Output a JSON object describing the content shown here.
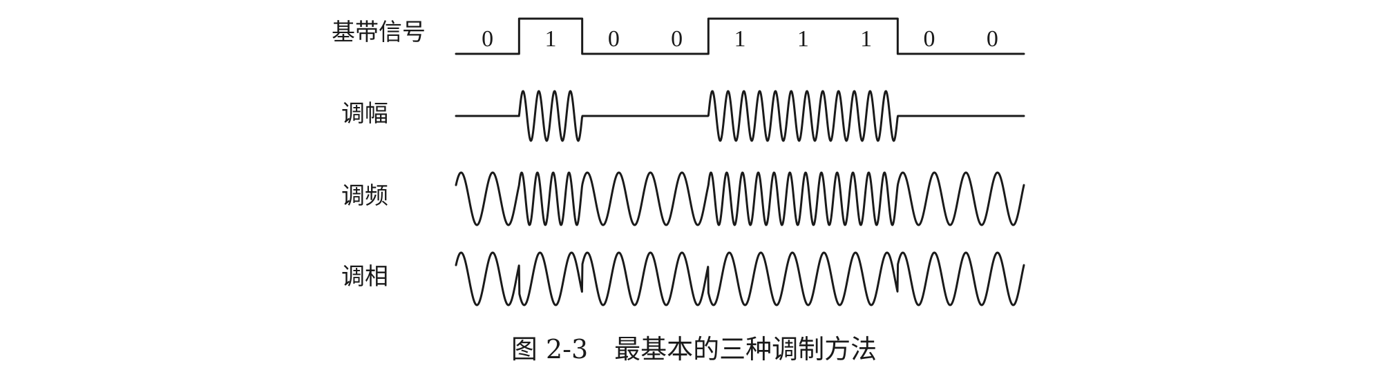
{
  "labels": {
    "baseband": "基带信号",
    "am": "调幅",
    "fm": "调频",
    "pm": "调相"
  },
  "bits": [
    "0",
    "1",
    "0",
    "0",
    "1",
    "1",
    "1",
    "0",
    "0"
  ],
  "caption": "图 2-3　最基本的三种调制方法",
  "colors": {
    "ink": "#1a1a1a",
    "background": "#ffffff"
  },
  "modulation": {
    "am_cycles_per_one_bit": 4,
    "fm_cycles_per_zero_bit": 2,
    "fm_cycles_per_one_bit": 4,
    "pm_cycles_per_bit": 2
  }
}
